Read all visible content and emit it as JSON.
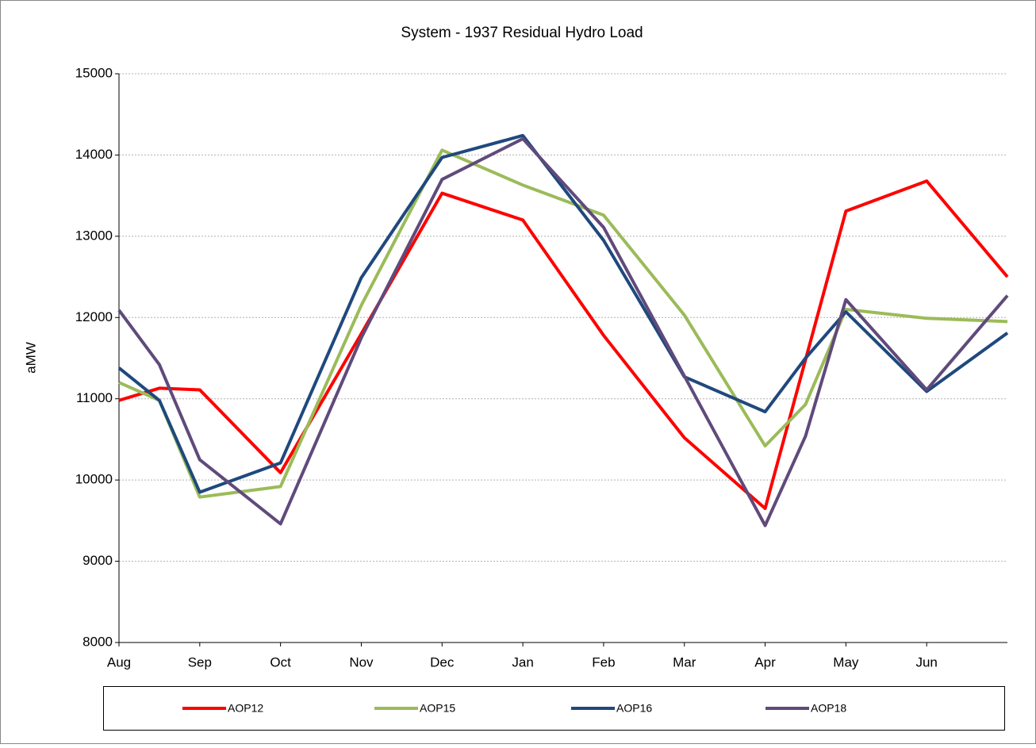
{
  "chart_data": {
    "type": "line",
    "title": "System - 1937 Residual Hydro Load",
    "y_label": "aMW",
    "x": [
      0,
      0.5,
      1,
      2,
      3,
      4,
      5,
      6,
      7,
      8,
      8.5,
      9,
      10,
      11
    ],
    "xlim": [
      0,
      11
    ],
    "xticks": [
      {
        "value": 0,
        "label": "Aug"
      },
      {
        "value": 1,
        "label": "Sep"
      },
      {
        "value": 2,
        "label": "Oct"
      },
      {
        "value": 3,
        "label": "Nov"
      },
      {
        "value": 4,
        "label": "Dec"
      },
      {
        "value": 5,
        "label": "Jan"
      },
      {
        "value": 6,
        "label": "Feb"
      },
      {
        "value": 7,
        "label": "Mar"
      },
      {
        "value": 8,
        "label": "Apr"
      },
      {
        "value": 9,
        "label": "May"
      },
      {
        "value": 10,
        "label": "Jun"
      }
    ],
    "ylim": [
      8000,
      15000
    ],
    "yticks": [
      8000,
      9000,
      10000,
      11000,
      12000,
      13000,
      14000,
      15000
    ],
    "grid": true,
    "series": [
      {
        "name": "AOP12",
        "color": "#ff0000",
        "values": [
          10980,
          11130,
          11110,
          10090,
          11800,
          13530,
          13200,
          11780,
          10520,
          9650,
          11480,
          13310,
          13680,
          12500
        ]
      },
      {
        "name": "AOP15",
        "color": "#9bbb59",
        "values": [
          11200,
          10980,
          9790,
          9920,
          12150,
          14060,
          13630,
          13260,
          12030,
          10420,
          10930,
          12100,
          11990,
          11950
        ]
      },
      {
        "name": "AOP16",
        "color": "#1f497d",
        "values": [
          11380,
          10980,
          9850,
          10210,
          12490,
          13970,
          14240,
          12950,
          11270,
          10840,
          11500,
          12070,
          11090,
          11810
        ]
      },
      {
        "name": "AOP18",
        "color": "#604a7b",
        "values": [
          12090,
          11420,
          10250,
          9460,
          11750,
          13700,
          14200,
          13110,
          11280,
          9440,
          10540,
          12220,
          11110,
          12270
        ]
      }
    ]
  }
}
